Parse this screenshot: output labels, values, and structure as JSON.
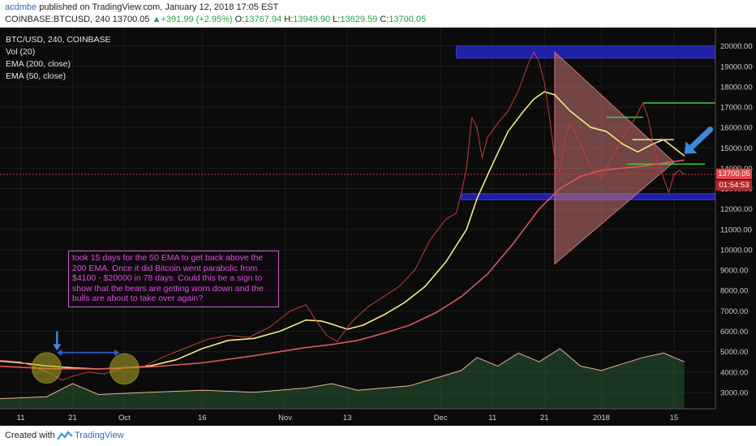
{
  "header": {
    "author": "acdmbe",
    "published_text": "published on TradingView.com, January 12, 2018 17:05 EST",
    "symbol": "COINBASE:BTCUSD, 240",
    "last": "13700.05",
    "change": "+391.99 (+2.95%)",
    "o_label": "O:",
    "o_value": "13767.94",
    "h_label": "H:",
    "h_value": "13949.90",
    "l_label": "L:",
    "l_value": "13629.59",
    "c_label": "C:",
    "c_value": "13700.05"
  },
  "legend": {
    "title": "BTC/USD, 240, COINBASE",
    "vol": "Vol (20)",
    "ema200": "EMA (200, close)",
    "ema50": "EMA (50, close)"
  },
  "annotation": "took 15 days for the 50 EMA to get back above the 200 EMA. Once it did Bitcoin went parabolic from $4100 - $20000 in 78 days. Could this be a sign to show that the bears are getting worn down and the bulls are about to take over again?",
  "price_tags": {
    "current": "13700.05",
    "countdown": "01:54:53"
  },
  "footer": {
    "created_with": "Created with",
    "brand": "TradingView"
  },
  "chart_data": {
    "type": "line",
    "title": "BTC/USD, 240, COINBASE",
    "y_axis": {
      "ticks": [
        20000,
        19000,
        18000,
        17000,
        16000,
        15000,
        14000,
        13000,
        12000,
        11000,
        10000,
        9000,
        8000,
        7000,
        6000,
        5000,
        4000,
        3000
      ],
      "tick_labels": [
        "20000.00",
        "19000.00",
        "18000.00",
        "17000.00",
        "16000.00",
        "15000.00",
        "14000.00",
        "13000.00",
        "12000.00",
        "11000.00",
        "10000.00",
        "9000.00",
        "8000.00",
        "7000.00",
        "6000.00",
        "5000.00",
        "4000.00",
        "3000.00"
      ],
      "ylim": [
        2200,
        20900
      ]
    },
    "x_axis": {
      "tick_labels": [
        "11",
        "21",
        "Oct",
        "16",
        "Nov",
        "13",
        "Dec",
        "11",
        "21",
        "2018",
        "15"
      ],
      "tick_day_index": [
        0,
        10,
        20,
        35,
        51,
        63,
        81,
        91,
        101,
        112,
        126
      ],
      "xlim": [
        -4,
        134
      ]
    },
    "series": [
      {
        "name": "EMA (50, close)",
        "color": "#f2eb8c",
        "points": [
          [
            -5,
            4560
          ],
          [
            0,
            4450
          ],
          [
            5,
            4300
          ],
          [
            10,
            4200
          ],
          [
            15,
            4150
          ],
          [
            20,
            4200
          ],
          [
            25,
            4300
          ],
          [
            30,
            4600
          ],
          [
            35,
            5150
          ],
          [
            40,
            5550
          ],
          [
            45,
            5650
          ],
          [
            50,
            6000
          ],
          [
            55,
            6550
          ],
          [
            58,
            6500
          ],
          [
            60,
            6350
          ],
          [
            63,
            6100
          ],
          [
            66,
            6300
          ],
          [
            70,
            6800
          ],
          [
            74,
            7400
          ],
          [
            78,
            8200
          ],
          [
            82,
            9400
          ],
          [
            86,
            11000
          ],
          [
            88,
            12500
          ],
          [
            91,
            14200
          ],
          [
            94,
            15800
          ],
          [
            97,
            16800
          ],
          [
            99,
            17400
          ],
          [
            101,
            17750
          ],
          [
            103,
            17600
          ],
          [
            106,
            16800
          ],
          [
            110,
            16000
          ],
          [
            113,
            15800
          ],
          [
            116,
            15200
          ],
          [
            119,
            14800
          ],
          [
            122,
            15200
          ],
          [
            124,
            15400
          ],
          [
            126,
            15000
          ],
          [
            128,
            14600
          ]
        ]
      },
      {
        "name": "EMA (200, close)",
        "color": "#e0555a",
        "points": [
          [
            -5,
            4300
          ],
          [
            5,
            4160
          ],
          [
            15,
            4150
          ],
          [
            25,
            4250
          ],
          [
            35,
            4450
          ],
          [
            45,
            4800
          ],
          [
            55,
            5200
          ],
          [
            60,
            5350
          ],
          [
            65,
            5550
          ],
          [
            70,
            5900
          ],
          [
            75,
            6300
          ],
          [
            80,
            6900
          ],
          [
            85,
            7700
          ],
          [
            90,
            8800
          ],
          [
            95,
            10300
          ],
          [
            100,
            12000
          ],
          [
            104,
            13000
          ],
          [
            108,
            13600
          ],
          [
            112,
            13900
          ],
          [
            116,
            14000
          ],
          [
            120,
            14100
          ],
          [
            124,
            14250
          ],
          [
            128,
            14400
          ]
        ]
      },
      {
        "name": "Price",
        "color": "#c83a3a",
        "points": [
          [
            -5,
            4600
          ],
          [
            0,
            4500
          ],
          [
            3,
            4200
          ],
          [
            6,
            3900
          ],
          [
            8,
            3600
          ],
          [
            10,
            3800
          ],
          [
            13,
            4000
          ],
          [
            16,
            3900
          ],
          [
            20,
            4200
          ],
          [
            24,
            4300
          ],
          [
            28,
            4800
          ],
          [
            32,
            5200
          ],
          [
            36,
            5600
          ],
          [
            40,
            5800
          ],
          [
            44,
            5700
          ],
          [
            48,
            6200
          ],
          [
            52,
            7000
          ],
          [
            55,
            7300
          ],
          [
            57,
            6500
          ],
          [
            59,
            5800
          ],
          [
            61,
            5500
          ],
          [
            64,
            6500
          ],
          [
            67,
            7200
          ],
          [
            70,
            7700
          ],
          [
            73,
            8200
          ],
          [
            76,
            9000
          ],
          [
            79,
            10500
          ],
          [
            82,
            11500
          ],
          [
            84,
            11800
          ],
          [
            85,
            12800
          ],
          [
            86,
            14000
          ],
          [
            87,
            16500
          ],
          [
            88,
            16000
          ],
          [
            89,
            14500
          ],
          [
            90,
            15500
          ],
          [
            92,
            16200
          ],
          [
            94,
            16800
          ],
          [
            96,
            17800
          ],
          [
            97,
            18500
          ],
          [
            98,
            19200
          ],
          [
            99,
            19700
          ],
          [
            100,
            19200
          ],
          [
            101,
            18200
          ],
          [
            102,
            16500
          ],
          [
            103,
            14500
          ],
          [
            104,
            13800
          ],
          [
            105,
            15500
          ],
          [
            106,
            16200
          ],
          [
            108,
            15200
          ],
          [
            110,
            14000
          ],
          [
            112,
            13500
          ],
          [
            114,
            14500
          ],
          [
            116,
            15500
          ],
          [
            118,
            16200
          ],
          [
            119,
            16700
          ],
          [
            120,
            17200
          ],
          [
            121,
            16500
          ],
          [
            122,
            15200
          ],
          [
            123,
            14200
          ],
          [
            124,
            13500
          ],
          [
            125,
            12800
          ],
          [
            126,
            13700
          ],
          [
            127,
            13900
          ],
          [
            128,
            13700
          ]
        ]
      }
    ],
    "volume": {
      "name": "Vol (20)",
      "color": "#2e6b3a",
      "points": [
        [
          -5,
          0.3
        ],
        [
          5,
          0.4
        ],
        [
          10,
          1.0
        ],
        [
          15,
          0.5
        ],
        [
          25,
          0.6
        ],
        [
          35,
          0.7
        ],
        [
          45,
          0.6
        ],
        [
          55,
          0.8
        ],
        [
          60,
          1.0
        ],
        [
          65,
          0.7
        ],
        [
          75,
          0.9
        ],
        [
          85,
          1.6
        ],
        [
          88,
          2.2
        ],
        [
          92,
          1.8
        ],
        [
          96,
          2.4
        ],
        [
          100,
          2.0
        ],
        [
          104,
          2.6
        ],
        [
          108,
          1.8
        ],
        [
          112,
          1.6
        ],
        [
          116,
          1.9
        ],
        [
          120,
          2.2
        ],
        [
          124,
          2.4
        ],
        [
          128,
          2.0
        ]
      ]
    },
    "annotations": {
      "zones": [
        {
          "name": "upper-resistance-zone",
          "y_low": 19400,
          "y_high": 20000,
          "day_start": 84,
          "day_end": 134,
          "color": "#1e20a6"
        },
        {
          "name": "lower-support-zone",
          "y_low": 12450,
          "y_high": 12750,
          "day_start": 85,
          "day_end": 134,
          "color": "#1e20a6"
        }
      ],
      "triangle": {
        "color": "#c97474",
        "points": [
          [
            103,
            19700
          ],
          [
            103,
            9300
          ],
          [
            126,
            14300
          ]
        ]
      },
      "h_lines": [
        {
          "name": "green-line-17200",
          "y": 17200,
          "day_start": 120,
          "day_end": 134,
          "color": "#3ecf3e"
        },
        {
          "name": "green-line-16500",
          "y": 16500,
          "day_start": 113,
          "day_end": 120,
          "color": "#3ecf3e"
        },
        {
          "name": "yellow-line-15400",
          "y": 15400,
          "day_start": 118,
          "day_end": 126,
          "color": "#f2eb8c"
        },
        {
          "name": "green-line-14200",
          "y": 14200,
          "day_start": 117,
          "day_end": 132,
          "color": "#3ecf3e"
        },
        {
          "name": "current-price-line",
          "y": 13700.05,
          "day_start": -4,
          "day_end": 134,
          "color": "#d93a3a"
        }
      ],
      "ellipses": [
        {
          "name": "crossover-ellipse-left",
          "day": 5,
          "y": 4200,
          "rx_days": 2.8,
          "ry_price": 750,
          "color": "#b4aa26"
        },
        {
          "name": "crossover-ellipse-right",
          "day": 20,
          "y": 4150,
          "rx_days": 2.8,
          "ry_price": 750,
          "color": "#b4aa26"
        }
      ],
      "range_arrow": {
        "day_start": 7,
        "day_end": 19,
        "y": 4950,
        "color": "#2a62d6"
      },
      "down_arrow": {
        "day": 7,
        "y_from": 6000,
        "y_to": 5050,
        "color": "#3b8ad9"
      },
      "big_arrow": {
        "day_from": 133,
        "y_from": 15900,
        "day_to": 128,
        "y_to": 14700,
        "color": "#3b8ad9"
      }
    }
  }
}
